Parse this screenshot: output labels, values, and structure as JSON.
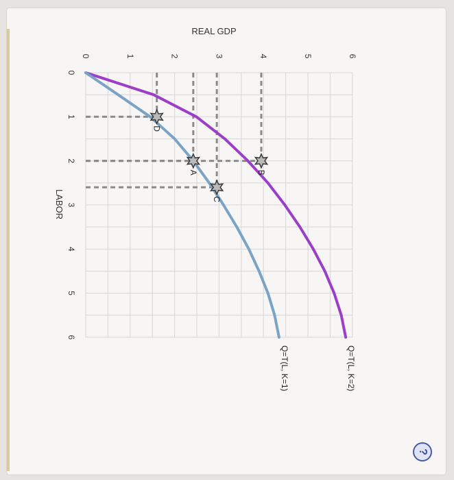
{
  "chart_data": {
    "type": "line",
    "xlabel": "LABOR",
    "ylabel": "REAL GDP",
    "xlim": [
      0,
      6
    ],
    "ylim": [
      0,
      6
    ],
    "x_ticks": [
      "0",
      "1",
      "2",
      "3",
      "4",
      "5",
      "6"
    ],
    "y_ticks": [
      "0",
      "1",
      "2",
      "3",
      "4",
      "5",
      "6"
    ],
    "grid": true,
    "series": [
      {
        "name": "Q=T(L, K=2)",
        "color": "#9b3fc9",
        "x": [
          0,
          0.5,
          1,
          1.5,
          2,
          2.5,
          3,
          3.5,
          4,
          4.5,
          5,
          5.5,
          6
        ],
        "y": [
          0,
          1.53,
          2.49,
          3.13,
          3.65,
          4.1,
          4.48,
          4.82,
          5.12,
          5.38,
          5.59,
          5.75,
          5.85
        ]
      },
      {
        "name": "Q=T(L, K=1)",
        "color": "#7aa3c6",
        "x": [
          0,
          0.5,
          1,
          1.5,
          2,
          2.5,
          3,
          3.5,
          4,
          4.5,
          5,
          5.5,
          6
        ],
        "y": [
          0,
          0.73,
          1.45,
          2.0,
          2.42,
          2.78,
          3.1,
          3.4,
          3.67,
          3.9,
          4.1,
          4.25,
          4.35
        ]
      }
    ],
    "points": [
      {
        "label": "A",
        "x": 2.0,
        "y": 2.42
      },
      {
        "label": "B",
        "x": 2.0,
        "y": 3.95
      },
      {
        "label": "C",
        "x": 2.6,
        "y": 2.95
      },
      {
        "label": "D",
        "x": 1.0,
        "y": 1.6
      }
    ],
    "colors": {
      "grid": "#d6d6d6",
      "dash": "#8a8a8a",
      "star_fill": "#b9b9b9",
      "star_stroke": "#3a3a3a"
    }
  },
  "help": {
    "icon": "help-icon",
    "label": "?"
  }
}
